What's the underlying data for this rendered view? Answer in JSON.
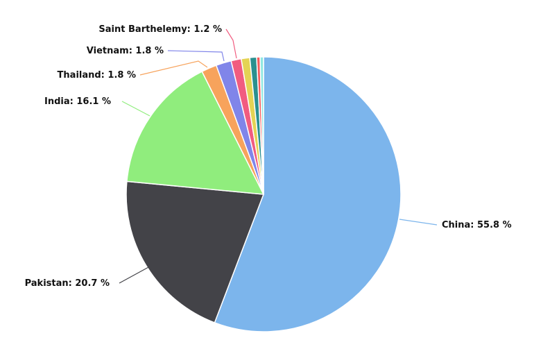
{
  "chart_data": {
    "type": "pie",
    "title": "",
    "start_angle_deg": 0,
    "direction": "clockwise",
    "slices": [
      {
        "name": "China",
        "value": 55.8,
        "label": "China: 55.8 %",
        "color": "#7cb5ec",
        "labeled": true
      },
      {
        "name": "Pakistan",
        "value": 20.7,
        "label": "Pakistan: 20.7 %",
        "color": "#434348",
        "labeled": true
      },
      {
        "name": "India",
        "value": 16.1,
        "label": "India: 16.1 %",
        "color": "#90ed7d",
        "labeled": true
      },
      {
        "name": "Thailand",
        "value": 1.8,
        "label": "Thailand: 1.8 %",
        "color": "#f7a35c",
        "labeled": true
      },
      {
        "name": "Vietnam",
        "value": 1.8,
        "label": "Vietnam: 1.8 %",
        "color": "#8085e9",
        "labeled": true
      },
      {
        "name": "Saint Barthelemy",
        "value": 1.2,
        "label": "Saint Barthelemy: 1.2 %",
        "color": "#f15c80",
        "labeled": true
      },
      {
        "name": "",
        "value": 1.0,
        "label": "",
        "color": "#e4d354",
        "labeled": false
      },
      {
        "name": "",
        "value": 0.8,
        "label": "",
        "color": "#2b908f",
        "labeled": false
      },
      {
        "name": "",
        "value": 0.4,
        "label": "",
        "color": "#f45b5b",
        "labeled": false
      },
      {
        "name": "",
        "value": 0.4,
        "label": "",
        "color": "#91e8e1",
        "labeled": false
      }
    ]
  }
}
